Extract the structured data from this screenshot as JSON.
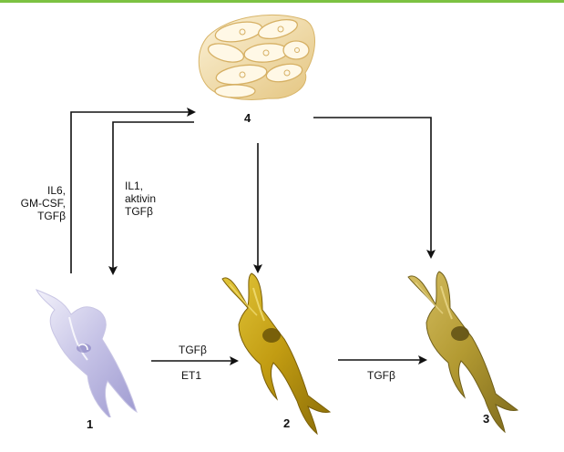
{
  "nodes": {
    "node1": {
      "label": "1"
    },
    "node2": {
      "label": "2"
    },
    "node3": {
      "label": "3"
    },
    "node4": {
      "label": "4"
    }
  },
  "edges": {
    "n1_to_n4": {
      "lines": [
        "IL6,",
        "GM-CSF,",
        "TGFβ"
      ]
    },
    "n4_to_n1": {
      "lines": [
        "IL1,",
        "aktivin",
        "TGFβ"
      ]
    },
    "n1_to_n2": {
      "above": "TGFβ",
      "below": "ET1"
    },
    "n2_to_n3": {
      "label": "TGFβ"
    }
  },
  "colors": {
    "top_band": "#7cc242",
    "arrow": "#111111",
    "cell4_fill": "#f1ddb0",
    "cell1_fill": "#c9c6e8",
    "cell2_fill": "#c9a615",
    "cell3_fill": "#b7a035"
  }
}
